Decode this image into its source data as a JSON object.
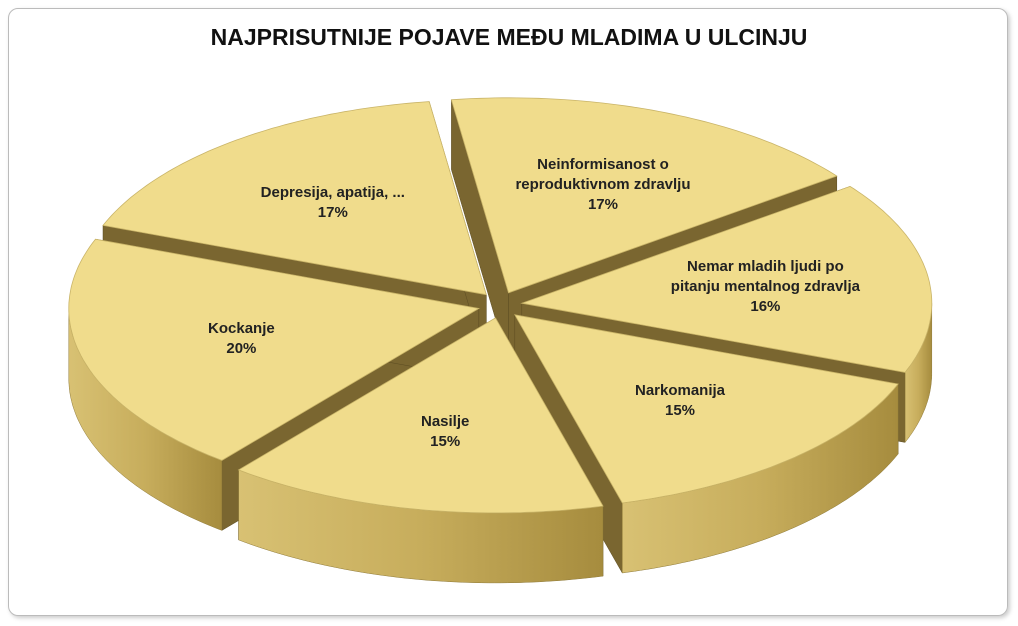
{
  "chart_data": {
    "type": "pie",
    "title": "NAJPRISUTNIJE POJAVE MEĐU MLADIMA U ULCINJU",
    "categories": [
      "Neinformisanost o reproduktivnom zdravlju",
      "Nemar mladih ljudi po pitanju mentalnog zdravlja",
      "Narkomanija",
      "Nasilje",
      "Kockanje",
      "Depresija, apatija, ..."
    ],
    "values": [
      17,
      16,
      15,
      15,
      20,
      17
    ],
    "value_labels": [
      "17%",
      "16%",
      "15%",
      "15%",
      "20%",
      "17%"
    ],
    "color": "#f0dc8c"
  }
}
